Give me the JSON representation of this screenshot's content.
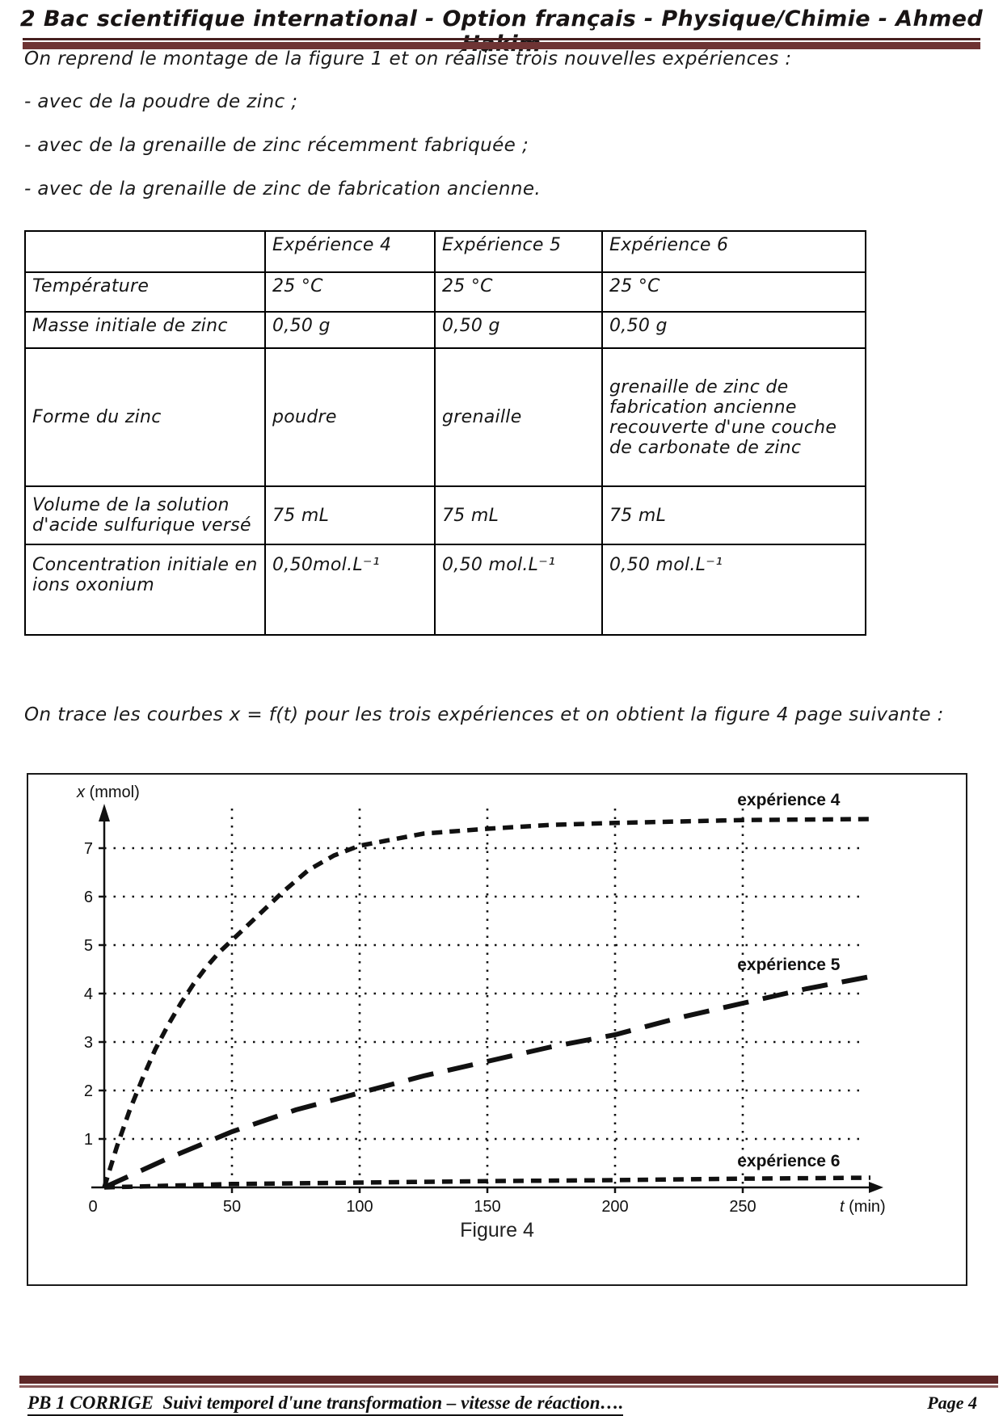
{
  "header": {
    "title": "2 Bac scientifique international - Option français - Physique/Chimie - Ahmed Hakim"
  },
  "intro": {
    "line1": "On reprend le montage de la figure 1 et on réalise trois nouvelles expériences :",
    "bullets": [
      "- avec de la poudre de zinc ;",
      "- avec de la grenaille de zinc récemment fabriquée ;",
      "- avec de la grenaille de zinc de fabrication ancienne."
    ]
  },
  "table": {
    "headers": [
      "",
      "Expérience 4",
      "Expérience 5",
      "Expérience 6"
    ],
    "rows": [
      {
        "label": "Température",
        "values": [
          "25 °C",
          "25 °C",
          "25 °C"
        ]
      },
      {
        "label": "Masse initiale de zinc",
        "values": [
          "0,50 g",
          "0,50 g",
          "0,50 g"
        ]
      },
      {
        "label": "Forme du zinc",
        "values": [
          "poudre",
          "grenaille",
          "grenaille de zinc de fabrication ancienne recouverte d'une couche de carbonate de zinc"
        ]
      },
      {
        "label": "Volume de la solution d'acide sulfurique versé",
        "values": [
          "75 mL",
          "75 mL",
          "75 mL"
        ]
      },
      {
        "label": "Concentration initiale en ions oxonium",
        "values": [
          "0,50mol.L⁻¹",
          "0,50 mol.L⁻¹",
          "0,50 mol.L⁻¹"
        ]
      }
    ]
  },
  "paragraph": "On trace les courbes x = f(t) pour les trois expériences et on obtient la figure 4 page suivante :",
  "figure": {
    "caption": "Figure 4"
  },
  "chart_data": {
    "type": "line",
    "title": "Figure 4",
    "xlabel": "t (min)",
    "ylabel": "x (mmol)",
    "xlim": [
      0,
      305
    ],
    "ylim": [
      0,
      8
    ],
    "x_ticks": [
      0,
      50,
      100,
      150,
      200,
      250
    ],
    "y_ticks": [
      1,
      2,
      3,
      4,
      5,
      6,
      7
    ],
    "grid": "dotted",
    "legend_position": "inline-labels",
    "series": [
      {
        "name": "expérience 4",
        "style": "short-dash",
        "x": [
          0,
          5,
          10,
          15,
          20,
          25,
          30,
          35,
          40,
          45,
          50,
          60,
          70,
          80,
          90,
          100,
          110,
          125,
          150,
          175,
          200,
          250,
          300
        ],
        "y": [
          0,
          0.85,
          1.6,
          2.25,
          2.85,
          3.35,
          3.8,
          4.2,
          4.55,
          4.85,
          5.1,
          5.6,
          6.1,
          6.55,
          6.85,
          7.05,
          7.15,
          7.3,
          7.4,
          7.48,
          7.52,
          7.58,
          7.6
        ],
        "label_pos": [
          268,
          8.0
        ]
      },
      {
        "name": "expérience 5",
        "style": "long-dash",
        "x": [
          0,
          25,
          50,
          75,
          100,
          125,
          150,
          175,
          200,
          225,
          250,
          275,
          300
        ],
        "y": [
          0,
          0.6,
          1.15,
          1.6,
          1.95,
          2.3,
          2.6,
          2.9,
          3.15,
          3.5,
          3.8,
          4.1,
          4.35
        ],
        "label_pos": [
          268,
          4.6
        ]
      },
      {
        "name": "expérience 6",
        "style": "short-dash",
        "x": [
          0,
          50,
          100,
          150,
          200,
          250,
          300
        ],
        "y": [
          0,
          0.07,
          0.1,
          0.13,
          0.15,
          0.18,
          0.2
        ],
        "label_pos": [
          268,
          0.55
        ]
      }
    ]
  },
  "footer": {
    "left": "PB 1 CORRIGE  Suivi temporel d'une transformation – vitesse de réaction….",
    "right": "Page 4"
  }
}
